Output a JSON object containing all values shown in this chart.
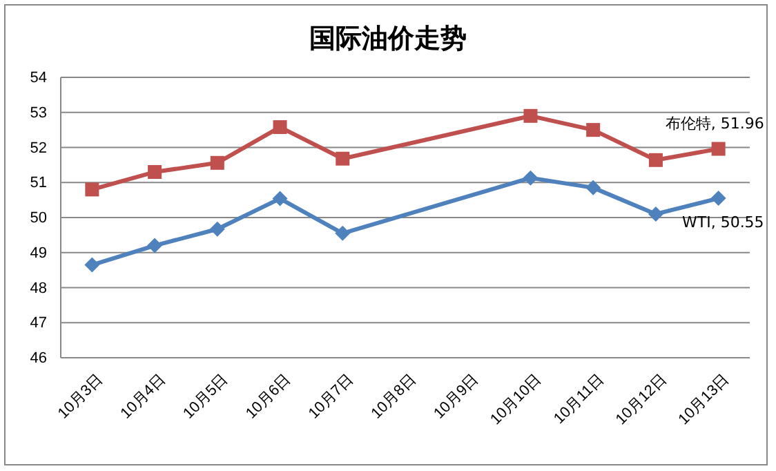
{
  "chart_data": {
    "type": "line",
    "title": "国际油价走势",
    "categories": [
      "10月3日",
      "10月4日",
      "10月5日",
      "10月6日",
      "10月7日",
      "10月8日",
      "10月9日",
      "10月10日",
      "10月11日",
      "10月12日",
      "10月13日"
    ],
    "series": [
      {
        "color": "#c0504d",
        "marker": "square",
        "values": [
          50.8,
          51.3,
          51.56,
          52.58,
          51.68,
          null,
          null,
          52.9,
          52.5,
          51.64,
          51.96
        ],
        "value_labels": [
          null,
          null,
          null,
          null,
          null,
          null,
          null,
          null,
          null,
          null,
          "布伦特, 51.96"
        ]
      },
      {
        "color": "#4f81bd",
        "marker": "diamond",
        "values": [
          48.65,
          49.2,
          49.67,
          50.54,
          49.55,
          null,
          null,
          51.13,
          50.85,
          50.1,
          50.55
        ],
        "value_labels": [
          null,
          null,
          null,
          null,
          null,
          null,
          null,
          null,
          null,
          null,
          "WTI, 50.55"
        ]
      }
    ],
    "ylim": [
      46,
      54
    ],
    "yticks": [
      46,
      47,
      48,
      49,
      50,
      51,
      52,
      53,
      54
    ],
    "grid": "y",
    "legend": false,
    "line_style": "solid"
  }
}
